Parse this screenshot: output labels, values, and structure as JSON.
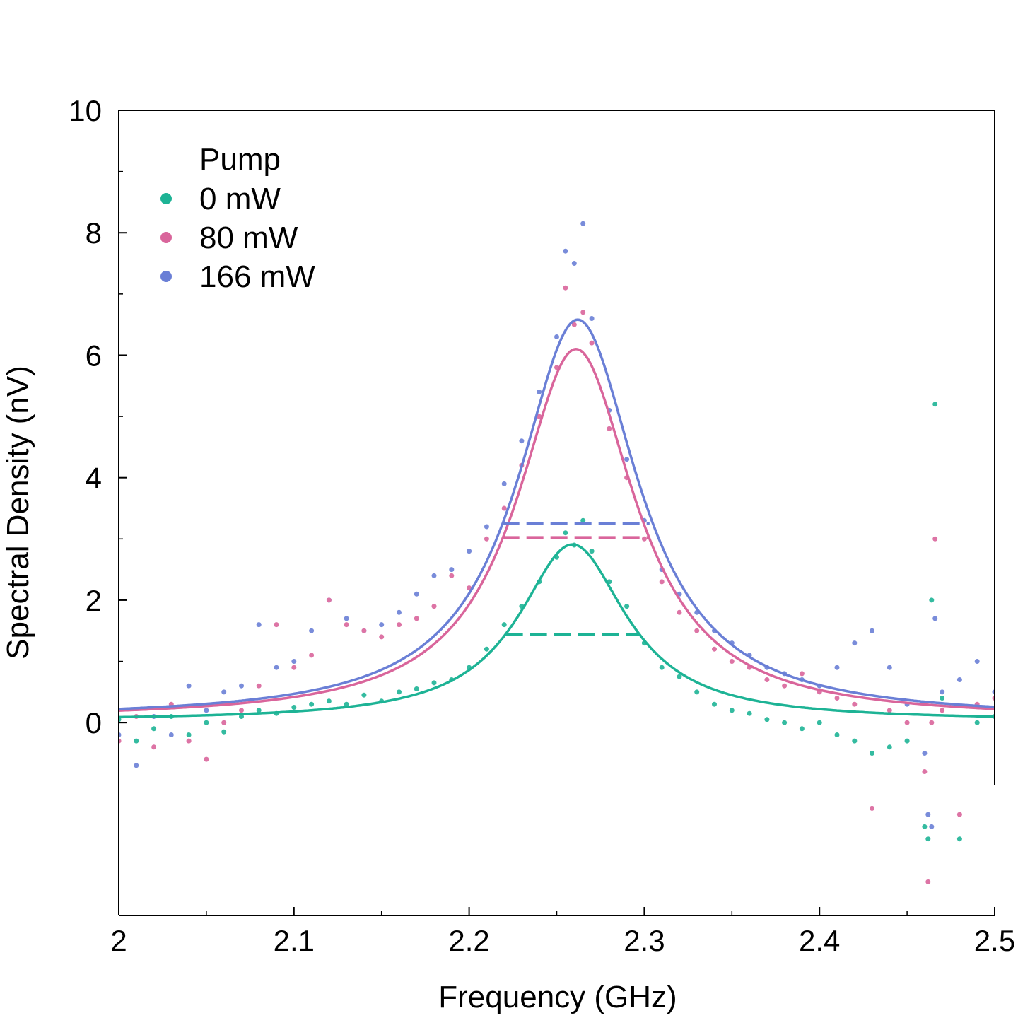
{
  "chart_data": {
    "type": "scatter",
    "xlabel": "Frequency (GHz)",
    "ylabel": "Spectral Density (nV)",
    "xlim": [
      2.0,
      2.5
    ],
    "ylim": [
      -3.15,
      10
    ],
    "xticks": [
      2,
      2.1,
      2.2,
      2.3,
      2.4,
      2.5
    ],
    "xtick_labels": [
      "2",
      "2.1",
      "2.2",
      "2.3",
      "2.4",
      "2.5"
    ],
    "yticks": [
      0,
      2,
      4,
      6,
      8,
      10
    ],
    "ytick_labels": [
      "0",
      "2",
      "4",
      "6",
      "8",
      "10"
    ],
    "grid": false,
    "legend": {
      "title": "Pump",
      "placement": "top-left",
      "entries": [
        "0 mW",
        "80 mW",
        "166 mW"
      ]
    },
    "series": [
      {
        "name": "0 mW",
        "color": "#1db395",
        "fit": {
          "model": "lorentzian",
          "center": 2.259,
          "peak": 2.88,
          "fwhm": 0.075,
          "offset": 0.03
        },
        "half_max_line": {
          "y": 1.44,
          "x": [
            2.221,
            2.297
          ]
        },
        "points": [
          [
            2.0,
            0.05
          ],
          [
            2.01,
            -0.3
          ],
          [
            2.02,
            -0.1
          ],
          [
            2.03,
            0.1
          ],
          [
            2.04,
            -0.2
          ],
          [
            2.05,
            0.0
          ],
          [
            2.06,
            -0.15
          ],
          [
            2.07,
            0.1
          ],
          [
            2.08,
            0.2
          ],
          [
            2.09,
            0.15
          ],
          [
            2.1,
            0.25
          ],
          [
            2.11,
            0.3
          ],
          [
            2.12,
            0.35
          ],
          [
            2.13,
            0.3
          ],
          [
            2.14,
            0.45
          ],
          [
            2.15,
            0.35
          ],
          [
            2.16,
            0.5
          ],
          [
            2.17,
            0.55
          ],
          [
            2.18,
            0.65
          ],
          [
            2.19,
            0.7
          ],
          [
            2.2,
            0.9
          ],
          [
            2.21,
            1.2
          ],
          [
            2.22,
            1.6
          ],
          [
            2.23,
            1.9
          ],
          [
            2.24,
            2.3
          ],
          [
            2.25,
            2.7
          ],
          [
            2.255,
            3.1
          ],
          [
            2.26,
            2.9
          ],
          [
            2.265,
            3.3
          ],
          [
            2.27,
            2.8
          ],
          [
            2.28,
            2.3
          ],
          [
            2.29,
            1.9
          ],
          [
            2.3,
            1.3
          ],
          [
            2.31,
            0.9
          ],
          [
            2.32,
            0.75
          ],
          [
            2.33,
            0.5
          ],
          [
            2.34,
            0.3
          ],
          [
            2.35,
            0.2
          ],
          [
            2.36,
            0.15
          ],
          [
            2.37,
            0.05
          ],
          [
            2.38,
            0.0
          ],
          [
            2.39,
            -0.1
          ],
          [
            2.4,
            0.0
          ],
          [
            2.41,
            -0.2
          ],
          [
            2.42,
            -0.3
          ],
          [
            2.43,
            -0.5
          ],
          [
            2.44,
            -0.4
          ],
          [
            2.45,
            -0.3
          ],
          [
            2.46,
            -1.7
          ],
          [
            2.462,
            -1.9
          ],
          [
            2.464,
            2.0
          ],
          [
            2.466,
            5.2
          ],
          [
            2.47,
            0.4
          ],
          [
            2.48,
            -1.9
          ],
          [
            2.49,
            0.0
          ],
          [
            2.5,
            0.1
          ]
        ]
      },
      {
        "name": "80 mW",
        "color": "#d9659b",
        "fit": {
          "model": "lorentzian",
          "center": 2.261,
          "peak": 6.05,
          "fwhm": 0.082,
          "offset": 0.05
        },
        "half_max_line": {
          "y": 3.02,
          "x": [
            2.219,
            2.302
          ]
        },
        "points": [
          [
            2.0,
            -0.3
          ],
          [
            2.01,
            0.1
          ],
          [
            2.02,
            -0.4
          ],
          [
            2.03,
            0.3
          ],
          [
            2.04,
            -0.3
          ],
          [
            2.05,
            -0.6
          ],
          [
            2.06,
            0.0
          ],
          [
            2.07,
            0.2
          ],
          [
            2.08,
            0.6
          ],
          [
            2.09,
            1.6
          ],
          [
            2.1,
            0.9
          ],
          [
            2.11,
            1.1
          ],
          [
            2.12,
            2.0
          ],
          [
            2.13,
            1.6
          ],
          [
            2.14,
            1.5
          ],
          [
            2.15,
            1.4
          ],
          [
            2.16,
            1.6
          ],
          [
            2.17,
            1.7
          ],
          [
            2.18,
            1.9
          ],
          [
            2.19,
            2.4
          ],
          [
            2.2,
            2.2
          ],
          [
            2.21,
            3.0
          ],
          [
            2.22,
            3.5
          ],
          [
            2.23,
            4.2
          ],
          [
            2.24,
            5.0
          ],
          [
            2.25,
            5.8
          ],
          [
            2.255,
            7.1
          ],
          [
            2.26,
            6.5
          ],
          [
            2.265,
            6.7
          ],
          [
            2.27,
            6.2
          ],
          [
            2.28,
            4.8
          ],
          [
            2.29,
            4.0
          ],
          [
            2.3,
            3.0
          ],
          [
            2.31,
            2.3
          ],
          [
            2.32,
            1.8
          ],
          [
            2.33,
            1.5
          ],
          [
            2.34,
            1.2
          ],
          [
            2.35,
            1.0
          ],
          [
            2.36,
            0.9
          ],
          [
            2.37,
            0.7
          ],
          [
            2.38,
            0.6
          ],
          [
            2.39,
            0.8
          ],
          [
            2.4,
            0.5
          ],
          [
            2.41,
            0.4
          ],
          [
            2.42,
            0.3
          ],
          [
            2.43,
            -1.4
          ],
          [
            2.44,
            0.2
          ],
          [
            2.45,
            0.0
          ],
          [
            2.46,
            -0.8
          ],
          [
            2.462,
            -2.6
          ],
          [
            2.464,
            0.0
          ],
          [
            2.466,
            3.0
          ],
          [
            2.47,
            0.2
          ],
          [
            2.48,
            -1.5
          ],
          [
            2.49,
            0.3
          ],
          [
            2.5,
            0.4
          ]
        ]
      },
      {
        "name": "166 mW",
        "color": "#6a7fd6",
        "fit": {
          "model": "lorentzian",
          "center": 2.262,
          "peak": 6.52,
          "fwhm": 0.084,
          "offset": 0.06
        },
        "half_max_line": {
          "y": 3.25,
          "x": [
            2.219,
            2.303
          ]
        },
        "points": [
          [
            2.0,
            -0.2
          ],
          [
            2.01,
            -0.7
          ],
          [
            2.02,
            0.1
          ],
          [
            2.03,
            -0.2
          ],
          [
            2.04,
            0.6
          ],
          [
            2.05,
            0.2
          ],
          [
            2.06,
            0.5
          ],
          [
            2.07,
            0.6
          ],
          [
            2.08,
            1.6
          ],
          [
            2.09,
            0.9
          ],
          [
            2.1,
            1.0
          ],
          [
            2.11,
            1.5
          ],
          [
            2.12,
            2.0
          ],
          [
            2.13,
            1.7
          ],
          [
            2.14,
            1.5
          ],
          [
            2.15,
            1.6
          ],
          [
            2.16,
            1.8
          ],
          [
            2.17,
            2.1
          ],
          [
            2.18,
            2.4
          ],
          [
            2.19,
            2.5
          ],
          [
            2.2,
            2.8
          ],
          [
            2.21,
            3.2
          ],
          [
            2.22,
            3.9
          ],
          [
            2.23,
            4.6
          ],
          [
            2.24,
            5.4
          ],
          [
            2.25,
            6.3
          ],
          [
            2.255,
            7.7
          ],
          [
            2.26,
            7.5
          ],
          [
            2.265,
            8.15
          ],
          [
            2.27,
            6.6
          ],
          [
            2.28,
            5.1
          ],
          [
            2.29,
            4.3
          ],
          [
            2.3,
            3.3
          ],
          [
            2.31,
            2.5
          ],
          [
            2.32,
            2.1
          ],
          [
            2.33,
            1.8
          ],
          [
            2.34,
            1.5
          ],
          [
            2.35,
            1.3
          ],
          [
            2.36,
            1.1
          ],
          [
            2.37,
            0.9
          ],
          [
            2.38,
            0.8
          ],
          [
            2.39,
            0.7
          ],
          [
            2.4,
            0.6
          ],
          [
            2.41,
            0.9
          ],
          [
            2.42,
            1.3
          ],
          [
            2.43,
            1.5
          ],
          [
            2.44,
            0.9
          ],
          [
            2.45,
            0.3
          ],
          [
            2.46,
            -0.5
          ],
          [
            2.462,
            -1.5
          ],
          [
            2.464,
            -1.7
          ],
          [
            2.466,
            1.7
          ],
          [
            2.47,
            0.5
          ],
          [
            2.48,
            0.7
          ],
          [
            2.49,
            1.0
          ],
          [
            2.5,
            0.5
          ]
        ]
      }
    ]
  }
}
